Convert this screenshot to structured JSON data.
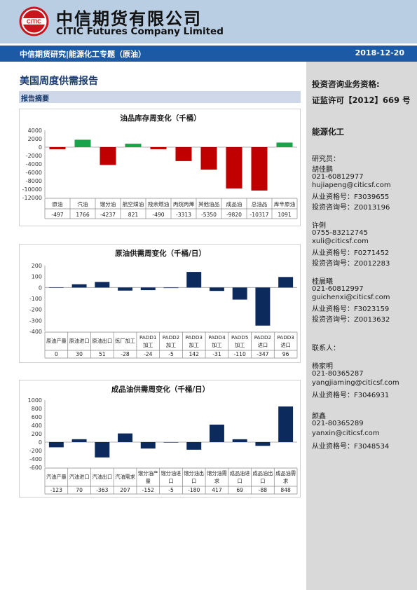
{
  "header": {
    "company_cn": "中信期货有限公司",
    "company_en": "CITIC Futures Company Limited",
    "logo_text": "CITIC",
    "bar_left": "中信期货研究|能源化工专题（原油）",
    "date": "2018-12-20"
  },
  "report": {
    "title": "美国周度供需报告",
    "summary_label": "报告摘要"
  },
  "colors": {
    "positive": "#1aa34a",
    "negative": "#c00000",
    "navy": "#0d2a5c",
    "bar_blue": "#1d5aa6",
    "sidebar": "#d9d9d9"
  },
  "sidebar": {
    "qual_title": "投资咨询业务资格:",
    "qual_license": "证监许可【2012】669 号",
    "sector": "能源化工",
    "researcher_label": "研究员：",
    "researchers": [
      {
        "name": "胡佳鹏",
        "phone": "021-60812977",
        "email": "hujiapeng@citicsf.com",
        "license": "从业资格号：F3039655",
        "advisory": "投资咨询号：Z0013196"
      },
      {
        "name": "许俐",
        "phone": "0755-83212745",
        "email": "xuli@citicsf.com",
        "license": "从业资格号：F0271452",
        "advisory": "投资咨询号：Z0012283"
      },
      {
        "name": "桂晨曦",
        "phone": "021-60812997",
        "email": "guichenxi@citicsf.com",
        "license": "从业资格号：F3023159",
        "advisory": "投资咨询号：Z0013632"
      }
    ],
    "contact_label": "联系人：",
    "contacts": [
      {
        "name": "杨家明",
        "phone": "021-80365287",
        "email": "yangjiaming@citicsf.com",
        "license": "从业资格号：F3046931"
      },
      {
        "name": "颜鑫",
        "phone": "021-80365289",
        "email": "yanxin@citicsf.com",
        "license": "从业资格号：F3048534"
      }
    ]
  },
  "chart_data": [
    {
      "type": "bar",
      "title": "油品库存周变化（千桶）",
      "categories": [
        "原油",
        "汽油",
        "馏分油",
        "航空煤油",
        "残余燃油",
        "丙烷丙烯",
        "其他油品",
        "成品油",
        "总油品",
        "库辛原油"
      ],
      "values": [
        -497,
        1766,
        -4237,
        821,
        -490,
        -3313,
        -5350,
        -9820,
        -10317,
        1091
      ],
      "yticks": [
        "4000",
        "2000",
        "0",
        "-2000",
        "-4000",
        "-6000",
        "-8000",
        "-10000",
        "-12000"
      ],
      "ylim": [
        -12000,
        4000
      ],
      "color_mode": "sign",
      "grid": false
    },
    {
      "type": "bar",
      "title": "原油供需周变化（千桶/日）",
      "categories": [
        "原油产量",
        "原油进口",
        "原油出口",
        "炼厂加工",
        "PADD1 加工",
        "PADD2 加工",
        "PADD3 加工",
        "PADD4 加工",
        "PADD5 加工",
        "PADD2 进口",
        "PADD3 进口"
      ],
      "values": [
        0,
        30,
        51,
        -28,
        -24,
        -5,
        142,
        -31,
        -110,
        -347,
        96
      ],
      "yticks": [
        "200",
        "100",
        "0",
        "-100",
        "-200",
        "-300",
        "-400"
      ],
      "ylim": [
        -400,
        200
      ],
      "color_mode": "single",
      "grid": false
    },
    {
      "type": "bar",
      "title": "成品油供需周变化（千桶/日）",
      "categories": [
        "汽油产量",
        "汽油进口",
        "汽油出口",
        "汽油需求",
        "馏分油产量",
        "馏分油进口",
        "馏分油出口",
        "馏分油需求",
        "成品油进口",
        "成品油出口",
        "成品油需求"
      ],
      "values": [
        -123,
        70,
        -363,
        207,
        -152,
        -5,
        -180,
        417,
        69,
        -88,
        848
      ],
      "yticks": [
        "1000",
        "800",
        "600",
        "400",
        "200",
        "0",
        "-200",
        "-400",
        "-600"
      ],
      "ylim": [
        -600,
        1000
      ],
      "color_mode": "single",
      "grid": false
    }
  ]
}
